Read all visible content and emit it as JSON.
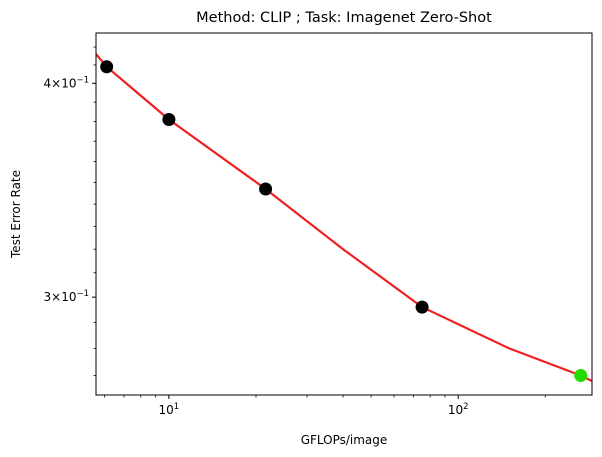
{
  "chart_data": {
    "type": "scatter",
    "title": "Method: CLIP ; Task: Imagenet Zero-Shot",
    "xlabel": "GFLOPs/image",
    "ylabel": "Test Error Rate",
    "xscale": "log",
    "yscale": "log",
    "xlim": [
      5.6,
      290
    ],
    "ylim": [
      0.263,
      0.428
    ],
    "grid": false,
    "x_ticks": [
      {
        "value": 10,
        "base": "10",
        "exp": "1"
      },
      {
        "value": 100,
        "base": "10",
        "exp": "2"
      }
    ],
    "y_ticks": [
      {
        "value": 0.3,
        "mant": "3",
        "base": "10",
        "exp": "−1"
      },
      {
        "value": 0.4,
        "mant": "4",
        "base": "10",
        "exp": "−1"
      }
    ],
    "series": [
      {
        "kind": "scatter",
        "color": "#000000",
        "points": [
          {
            "x": 6.1,
            "y": 0.409
          },
          {
            "x": 10.0,
            "y": 0.381
          },
          {
            "x": 21.6,
            "y": 0.347
          },
          {
            "x": 75.0,
            "y": 0.296
          }
        ]
      },
      {
        "kind": "scatter",
        "color": "#22dd00",
        "points": [
          {
            "x": 265,
            "y": 0.27
          }
        ]
      },
      {
        "kind": "line",
        "color": "#f02020",
        "points": [
          {
            "x": 5.6,
            "y": 0.416
          },
          {
            "x": 6.1,
            "y": 0.409
          },
          {
            "x": 10.0,
            "y": 0.381
          },
          {
            "x": 21.6,
            "y": 0.347
          },
          {
            "x": 40,
            "y": 0.32
          },
          {
            "x": 75.0,
            "y": 0.296
          },
          {
            "x": 150,
            "y": 0.28
          },
          {
            "x": 265,
            "y": 0.27
          },
          {
            "x": 290,
            "y": 0.268
          }
        ]
      }
    ]
  }
}
